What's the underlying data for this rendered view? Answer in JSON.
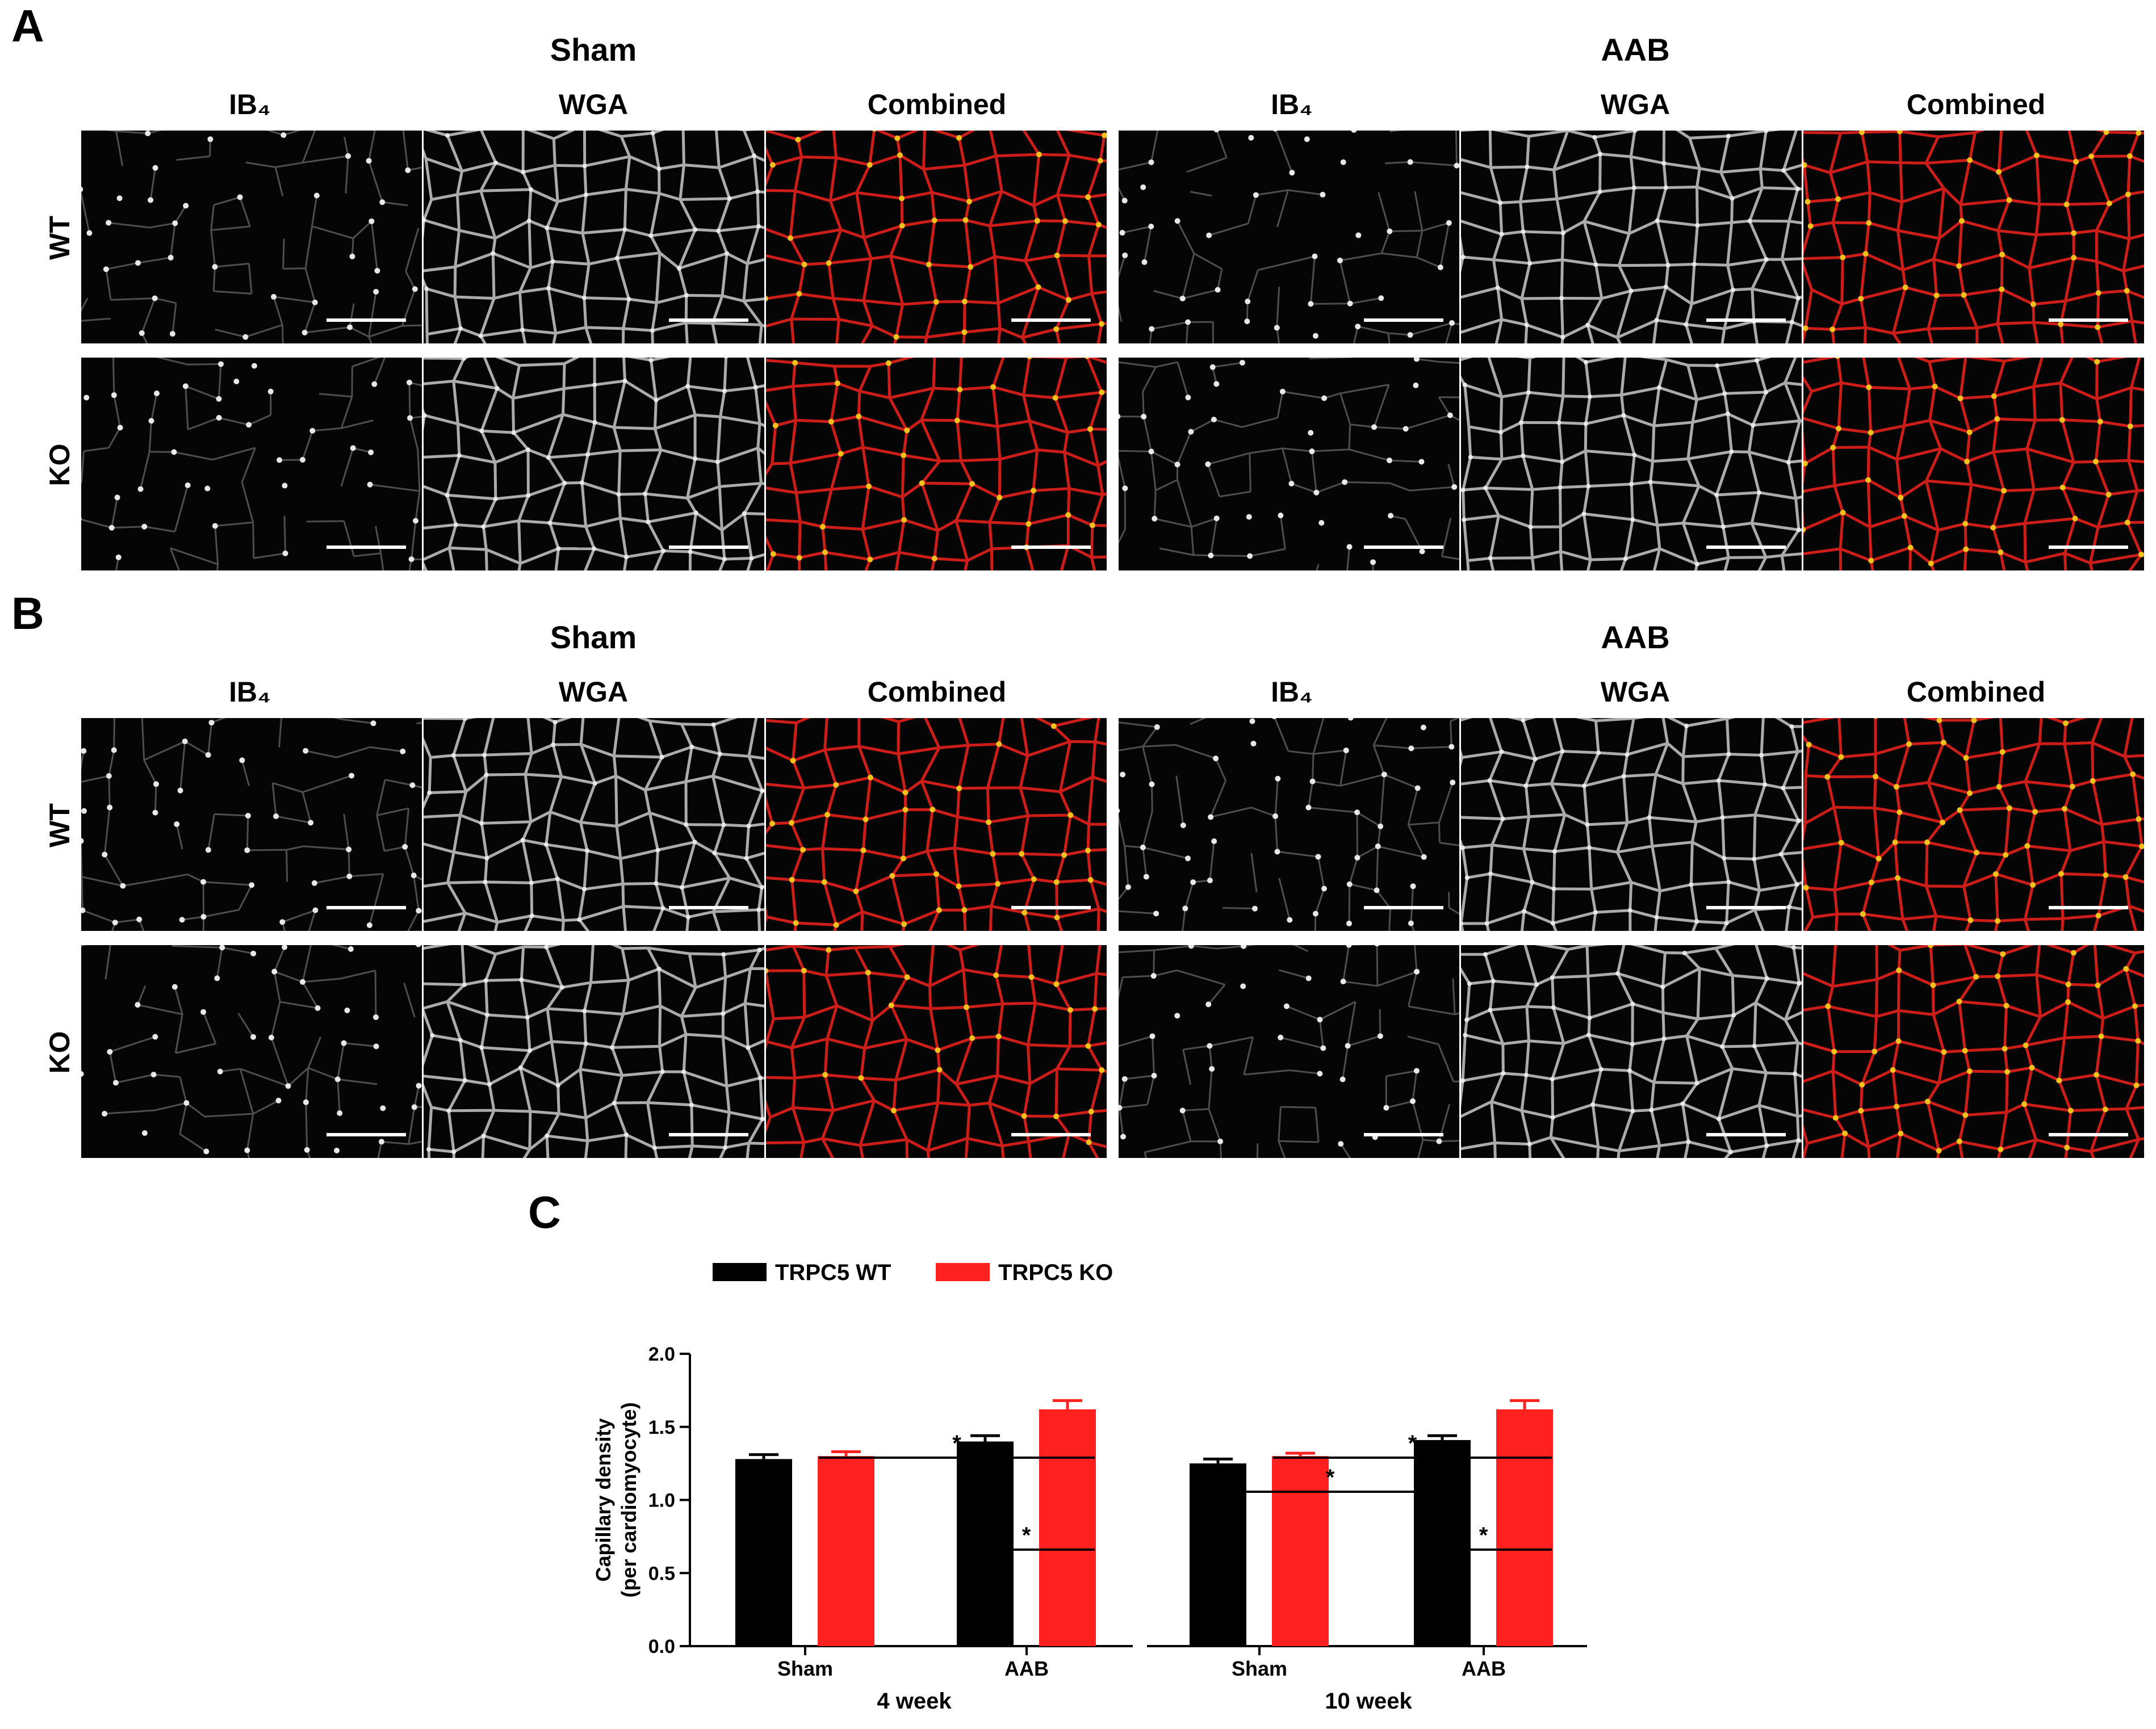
{
  "panels": {
    "A": {
      "letter": "A",
      "conditions": [
        "Sham",
        "AAB"
      ],
      "columns": [
        "IB₄",
        "WGA",
        "Combined",
        "IB₄",
        "WGA",
        "Combined"
      ],
      "rows": [
        "WT",
        "KO"
      ]
    },
    "B": {
      "letter": "B",
      "conditions": [
        "Sham",
        "AAB"
      ],
      "columns": [
        "IB₄",
        "WGA",
        "Combined",
        "IB₄",
        "WGA",
        "Combined"
      ],
      "rows": [
        "WT",
        "KO"
      ]
    },
    "C": {
      "letter": "C"
    }
  },
  "chart_data": {
    "type": "bar",
    "title": "",
    "ylabel_line1": "Capillary density",
    "ylabel_line2": "(per cardiomyocyte)",
    "ylim": [
      0,
      2.0
    ],
    "yticks": [
      "0.0",
      "0.5",
      "1.0",
      "1.5",
      "2.0"
    ],
    "ytick_values": [
      0,
      0.5,
      1.0,
      1.5,
      2.0
    ],
    "legend": [
      {
        "name": "TRPC5 WT",
        "color": "#000000"
      },
      {
        "name": "TRPC5 KO",
        "color": "#ff2020"
      }
    ],
    "groups": [
      {
        "name": "4 week",
        "categories": [
          "Sham",
          "AAB"
        ],
        "series": [
          {
            "name": "TRPC5 WT",
            "values": [
              1.28,
              1.4
            ],
            "errors": [
              0.03,
              0.04
            ]
          },
          {
            "name": "TRPC5 KO",
            "values": [
              1.3,
              1.62
            ],
            "errors": [
              0.03,
              0.06
            ]
          }
        ],
        "significance": [
          {
            "label": "*",
            "from": "Sham-KO",
            "to": "AAB-KO",
            "level": 2
          },
          {
            "label": "*",
            "from": "AAB-WT",
            "to": "AAB-KO",
            "level": 1
          }
        ]
      },
      {
        "name": "10 week",
        "categories": [
          "Sham",
          "AAB"
        ],
        "series": [
          {
            "name": "TRPC5 WT",
            "values": [
              1.25,
              1.41
            ],
            "errors": [
              0.03,
              0.03
            ]
          },
          {
            "name": "TRPC5 KO",
            "values": [
              1.3,
              1.62
            ],
            "errors": [
              0.02,
              0.06
            ]
          }
        ],
        "significance": [
          {
            "label": "*",
            "from": "Sham-KO",
            "to": "AAB-KO",
            "level": 3
          },
          {
            "label": "*",
            "from": "Sham-WT",
            "to": "AAB-WT",
            "level": 2
          },
          {
            "label": "*",
            "from": "AAB-WT",
            "to": "AAB-KO",
            "level": 1
          }
        ]
      }
    ]
  }
}
